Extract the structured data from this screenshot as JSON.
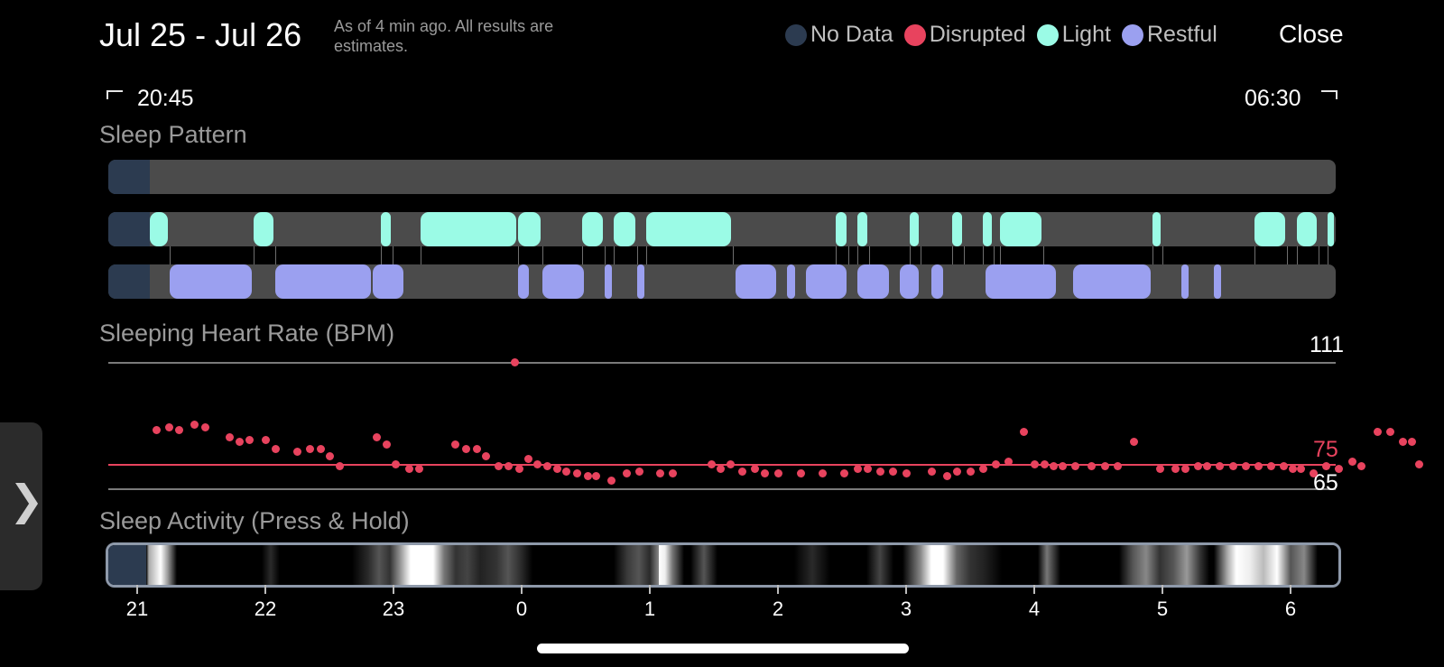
{
  "header": {
    "title": "Jul 25 - Jul 26",
    "subtitle": "As of 4 min ago. All results are estimates.",
    "close_label": "Close"
  },
  "legend": [
    {
      "label": "No Data",
      "color": "#2c3b50"
    },
    {
      "label": "Disrupted",
      "color": "#e8435e"
    },
    {
      "label": "Light",
      "color": "#9bfbe6"
    },
    {
      "label": "Restful",
      "color": "#9ba0f0"
    }
  ],
  "time_range": {
    "start": "20:45",
    "end": "06:30"
  },
  "sleep_pattern": {
    "label": "Sleep Pattern",
    "start_hour": 20.75,
    "end_hour": 30.5,
    "light": [
      [
        21.08,
        21.25
      ],
      [
        21.91,
        22.08
      ],
      [
        22.9,
        22.99
      ],
      [
        23.21,
        23.97
      ],
      [
        23.97,
        24.16
      ],
      [
        24.47,
        24.65
      ],
      [
        24.72,
        24.9
      ],
      [
        24.97,
        25.65
      ],
      [
        26.45,
        26.55
      ],
      [
        26.62,
        26.71
      ],
      [
        27.03,
        27.11
      ],
      [
        27.36,
        27.45
      ],
      [
        27.6,
        27.68
      ],
      [
        27.73,
        28.07
      ],
      [
        28.92,
        29.0
      ],
      [
        29.72,
        29.97
      ],
      [
        30.05,
        30.22
      ],
      [
        30.29,
        31.16
      ]
    ],
    "restful": [
      [
        21.25,
        21.91
      ],
      [
        22.08,
        22.84
      ],
      [
        22.84,
        23.09
      ],
      [
        23.97,
        24.07
      ],
      [
        24.16,
        24.5
      ],
      [
        24.65,
        24.72
      ],
      [
        24.9,
        24.97
      ],
      [
        25.67,
        26.0
      ],
      [
        26.07,
        26.15
      ],
      [
        26.22,
        26.55
      ],
      [
        26.62,
        26.88
      ],
      [
        26.95,
        27.11
      ],
      [
        27.2,
        27.3
      ],
      [
        27.62,
        28.18
      ],
      [
        28.3,
        28.92
      ],
      [
        29.15,
        29.22
      ],
      [
        29.4,
        29.47
      ]
    ]
  },
  "heart_rate": {
    "label": "Sleeping Heart Rate (BPM)",
    "max_label": "111",
    "avg_label": "75",
    "min_label": "65",
    "max_point": {
      "hour": 23.95,
      "bpm": 111
    },
    "points": [
      [
        21.15,
        89
      ],
      [
        21.25,
        90
      ],
      [
        21.33,
        89
      ],
      [
        21.45,
        91
      ],
      [
        21.53,
        90
      ],
      [
        21.72,
        86
      ],
      [
        21.8,
        84
      ],
      [
        21.88,
        85
      ],
      [
        22.0,
        85
      ],
      [
        22.08,
        81
      ],
      [
        22.25,
        80
      ],
      [
        22.35,
        81
      ],
      [
        22.43,
        81
      ],
      [
        22.5,
        78
      ],
      [
        22.58,
        74
      ],
      [
        22.87,
        86
      ],
      [
        22.95,
        83
      ],
      [
        23.02,
        75
      ],
      [
        23.12,
        73
      ],
      [
        23.2,
        73
      ],
      [
        23.48,
        83
      ],
      [
        23.57,
        81
      ],
      [
        23.65,
        81
      ],
      [
        23.72,
        78
      ],
      [
        23.82,
        74
      ],
      [
        23.9,
        74
      ],
      [
        23.98,
        73
      ],
      [
        24.05,
        77
      ],
      [
        24.12,
        75
      ],
      [
        24.2,
        74
      ],
      [
        24.28,
        73
      ],
      [
        24.35,
        72
      ],
      [
        24.43,
        71
      ],
      [
        24.52,
        70
      ],
      [
        24.58,
        70
      ],
      [
        24.7,
        68
      ],
      [
        24.82,
        71
      ],
      [
        24.92,
        72
      ],
      [
        25.08,
        71
      ],
      [
        25.18,
        71
      ],
      [
        25.48,
        75
      ],
      [
        25.55,
        73
      ],
      [
        25.63,
        75
      ],
      [
        25.72,
        72
      ],
      [
        25.82,
        73
      ],
      [
        25.9,
        71
      ],
      [
        26.0,
        71
      ],
      [
        26.18,
        71
      ],
      [
        26.35,
        71
      ],
      [
        26.52,
        71
      ],
      [
        26.62,
        73
      ],
      [
        26.7,
        73
      ],
      [
        26.8,
        72
      ],
      [
        26.9,
        72
      ],
      [
        27.0,
        71
      ],
      [
        27.2,
        72
      ],
      [
        27.32,
        70
      ],
      [
        27.4,
        72
      ],
      [
        27.5,
        72
      ],
      [
        27.6,
        73
      ],
      [
        27.7,
        75
      ],
      [
        27.8,
        76
      ],
      [
        27.92,
        88
      ],
      [
        28.0,
        75
      ],
      [
        28.08,
        75
      ],
      [
        28.15,
        74
      ],
      [
        28.22,
        74
      ],
      [
        28.32,
        74
      ],
      [
        28.45,
        74
      ],
      [
        28.55,
        74
      ],
      [
        28.65,
        74
      ],
      [
        28.78,
        84
      ],
      [
        28.98,
        73
      ],
      [
        29.1,
        73
      ],
      [
        29.18,
        73
      ],
      [
        29.28,
        74
      ],
      [
        29.35,
        74
      ],
      [
        29.45,
        74
      ],
      [
        29.55,
        74
      ],
      [
        29.65,
        74
      ],
      [
        29.75,
        74
      ],
      [
        29.85,
        74
      ],
      [
        29.95,
        74
      ],
      [
        30.02,
        73
      ],
      [
        30.08,
        73
      ],
      [
        30.18,
        71
      ],
      [
        30.28,
        74
      ],
      [
        30.38,
        73
      ],
      [
        30.48,
        76
      ],
      [
        30.55,
        74
      ],
      [
        30.68,
        88
      ],
      [
        30.78,
        88
      ],
      [
        30.88,
        84
      ],
      [
        30.95,
        84
      ],
      [
        31.0,
        75
      ]
    ]
  },
  "sleep_activity": {
    "label": "Sleep Activity (Press & Hold)",
    "ticks": [
      "21",
      "22",
      "23",
      "0",
      "1",
      "2",
      "3",
      "4",
      "5",
      "6"
    ]
  }
}
